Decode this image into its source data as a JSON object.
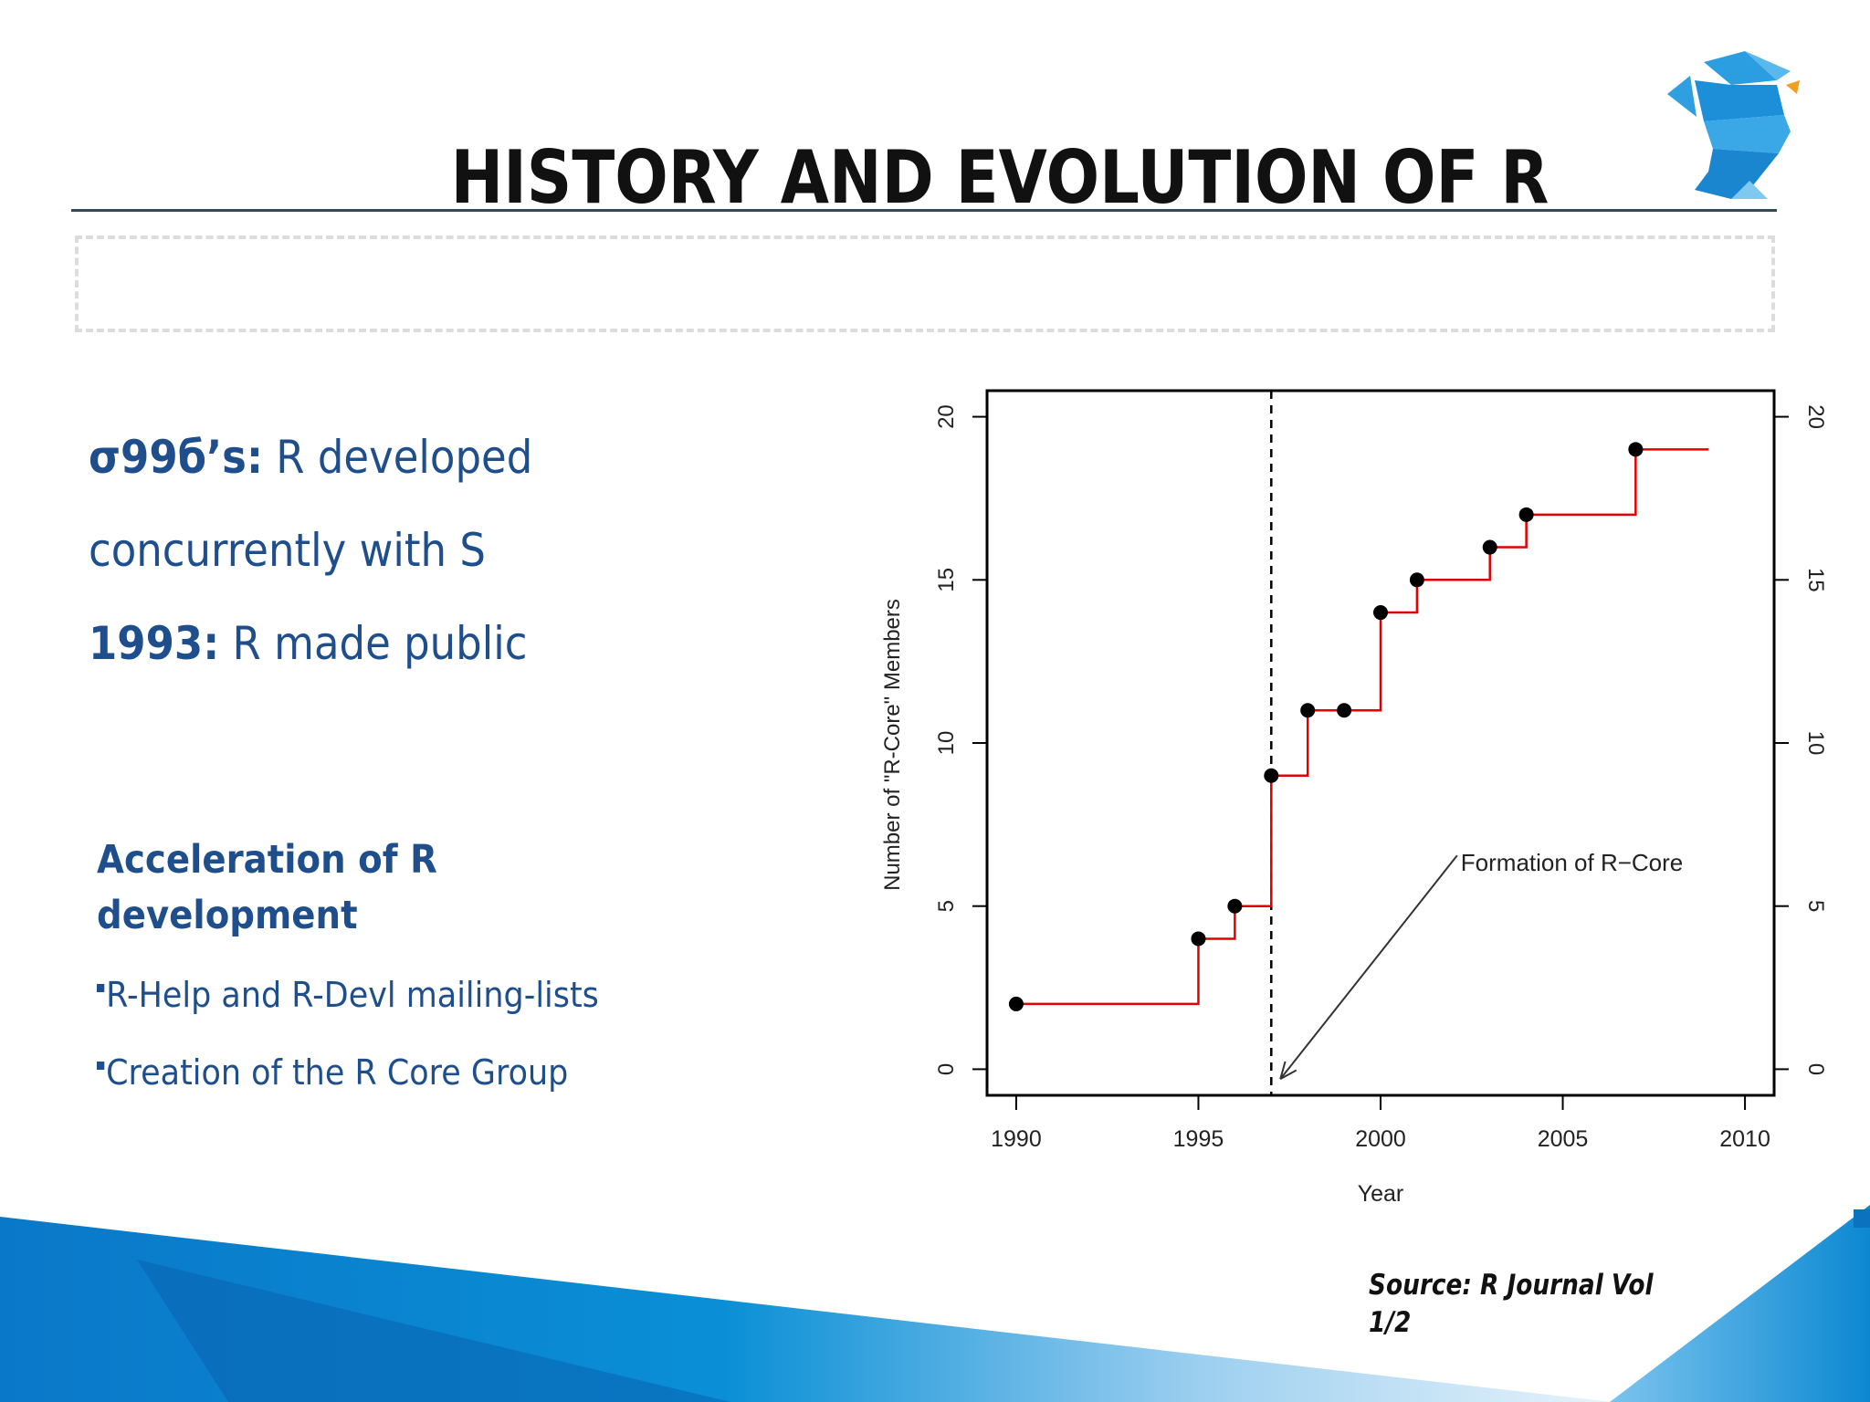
{
  "slide": {
    "title": "HISTORY AND EVOLUTION OF R",
    "points": [
      {
        "bold": "σ99б’s:",
        "text": " R developed"
      },
      {
        "bold": "",
        "text": "concurrently with S"
      },
      {
        "bold": "1993:",
        "text": " R made public"
      }
    ],
    "subheading": "Acceleration of R development",
    "bullets": [
      "R-Help and R-Devl mailing-lists",
      "Creation of the R Core Group"
    ],
    "source_line1": "Source: R Journal Vol",
    "source_line2": "1/2",
    "logo_icon": "polygon-head-logo",
    "colors": {
      "text": "#1f4e8c",
      "series": "#e00000",
      "accent": "#1a8fd8"
    }
  },
  "chart_data": {
    "type": "line",
    "step": true,
    "title": "",
    "xlabel": "Year",
    "ylabel": "Number of \"R-Core\" Members",
    "xlim": [
      1989.2,
      2010.8
    ],
    "ylim": [
      -0.8,
      20.8
    ],
    "xticks": [
      1990,
      1995,
      2000,
      2005,
      2010
    ],
    "yticks": [
      0,
      5,
      10,
      15,
      20
    ],
    "right_axis_ticks": [
      0,
      5,
      10,
      15,
      20
    ],
    "grid": false,
    "series": [
      {
        "color": "#e00000",
        "x": [
          1990,
          1995,
          1996,
          1997,
          1998,
          1999,
          2000,
          2001,
          2003,
          2004,
          2007
        ],
        "y": [
          2,
          4,
          5,
          9,
          11,
          11,
          14,
          15,
          16,
          17,
          19
        ],
        "line_extends_to": 2009
      }
    ],
    "vline": {
      "x": 1997,
      "style": "dashed"
    },
    "annotation": {
      "text": "Formation of R−Core",
      "text_at": [
        2002.2,
        6.3
      ],
      "arrow_from": [
        2002.1,
        6.55
      ],
      "arrow_to": [
        1997.25,
        -0.3
      ]
    }
  }
}
